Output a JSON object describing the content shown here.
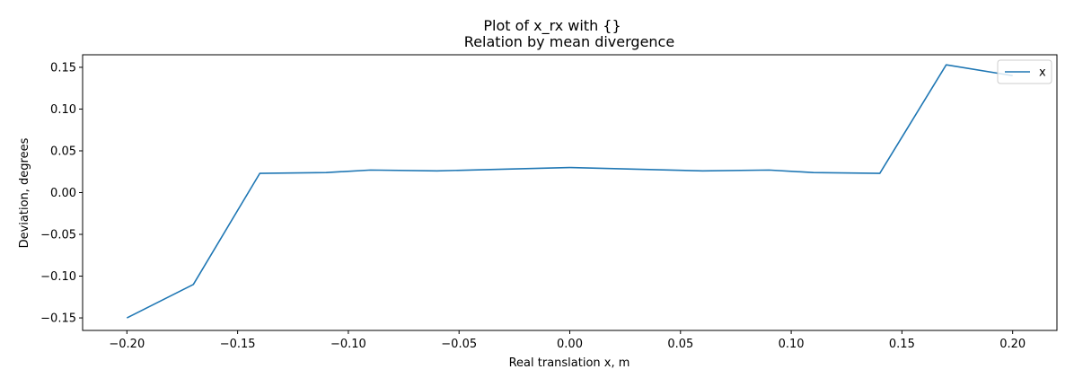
{
  "chart_data": {
    "type": "line",
    "suptitle": "Plot of x_rx with {}",
    "title": "Relation by mean divergence",
    "xlabel": "Real translation x, m",
    "ylabel": "Deviation, degrees",
    "xlim": [
      -0.22,
      0.22
    ],
    "ylim": [
      -0.165,
      0.165
    ],
    "xticks": [
      -0.2,
      -0.15,
      -0.1,
      -0.05,
      0.0,
      0.05,
      0.1,
      0.15,
      0.2
    ],
    "xtick_labels": [
      "−0.20",
      "−0.15",
      "−0.10",
      "−0.05",
      "0.00",
      "0.05",
      "0.10",
      "0.15",
      "0.20"
    ],
    "yticks": [
      -0.15,
      -0.1,
      -0.05,
      0.0,
      0.05,
      0.1,
      0.15
    ],
    "ytick_labels": [
      "−0.15",
      "−0.10",
      "−0.05",
      "0.00",
      "0.05",
      "0.10",
      "0.15"
    ],
    "grid": false,
    "legend": {
      "position": "top-right",
      "entries": [
        "x"
      ]
    },
    "series": [
      {
        "name": "x",
        "color": "#1f77b4",
        "x": [
          -0.2,
          -0.17,
          -0.14,
          -0.11,
          -0.09,
          -0.06,
          -0.03,
          0.0,
          0.03,
          0.06,
          0.09,
          0.11,
          0.14,
          0.17,
          0.2
        ],
        "y": [
          -0.15,
          -0.11,
          0.023,
          0.024,
          0.027,
          0.026,
          0.028,
          0.03,
          0.028,
          0.026,
          0.027,
          0.024,
          0.023,
          0.153,
          0.14
        ]
      }
    ]
  }
}
